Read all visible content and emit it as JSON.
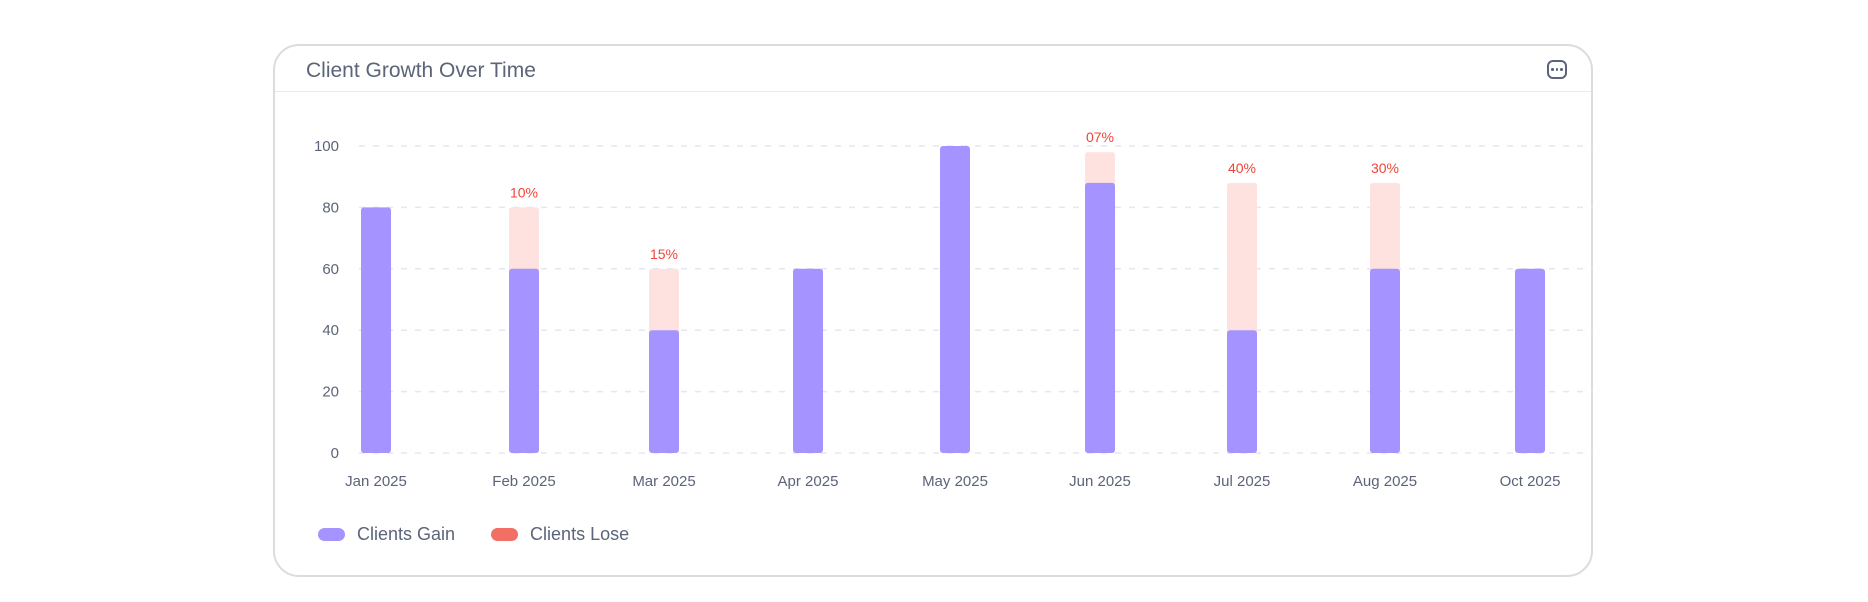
{
  "card": {
    "title": "Client Growth Over Time",
    "menu_icon": "more-horizontal-icon"
  },
  "colors": {
    "gain": "#a593ff",
    "lose": "#f36f63",
    "lose_fill": "#fde2e0",
    "label": "#f0443a",
    "grid": "#e4e7f2",
    "text": "#5b6478"
  },
  "chart_data": {
    "type": "bar",
    "stacked": true,
    "title": "Client Growth Over Time",
    "categories": [
      "Jan 2025",
      "Feb 2025",
      "Mar 2025",
      "Apr 2025",
      "May 2025",
      "Jun 2025",
      "Jul 2025",
      "Aug 2025",
      "Oct 2025"
    ],
    "series": [
      {
        "name": "Clients Gain",
        "values": [
          80,
          60,
          40,
          60,
          100,
          88,
          40,
          60,
          60
        ]
      },
      {
        "name": "Clients Lose",
        "values": [
          0,
          20,
          20,
          0,
          0,
          10,
          48,
          28,
          0
        ]
      }
    ],
    "annotations": [
      "",
      "10%",
      "15%",
      "",
      "",
      "07%",
      "40%",
      "30%",
      ""
    ],
    "yticks": [
      0,
      20,
      40,
      60,
      80,
      100
    ],
    "ylim": [
      0,
      100
    ],
    "grid": true,
    "legend_position": "bottom-left"
  }
}
